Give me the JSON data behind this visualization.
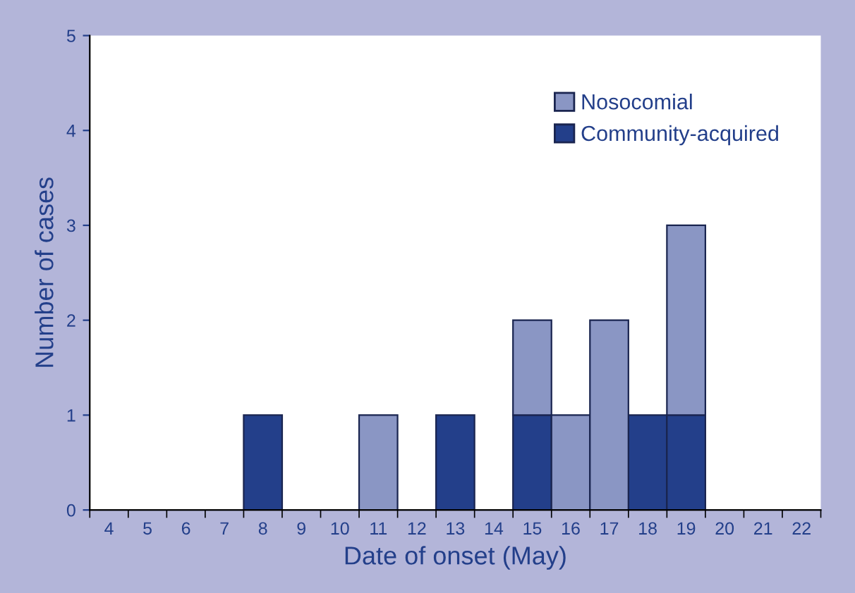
{
  "chart_data": {
    "type": "bar",
    "stacked": true,
    "xlabel": "Date of onset (May)",
    "ylabel": "Number of cases",
    "categories": [
      "4",
      "5",
      "6",
      "7",
      "8",
      "9",
      "10",
      "11",
      "12",
      "13",
      "14",
      "15",
      "16",
      "17",
      "18",
      "19",
      "20",
      "21",
      "22"
    ],
    "series": [
      {
        "name": "Community-acquired",
        "color": "#233f8a",
        "values": [
          null,
          null,
          null,
          null,
          1,
          null,
          null,
          null,
          null,
          1,
          null,
          1,
          null,
          null,
          1,
          1,
          null,
          null,
          null
        ]
      },
      {
        "name": "Nosocomial",
        "color": "#8a96c4",
        "values": [
          null,
          null,
          null,
          null,
          null,
          null,
          null,
          1,
          null,
          null,
          null,
          1,
          1,
          2,
          null,
          2,
          null,
          null,
          null
        ]
      }
    ],
    "ylim": [
      0,
      5
    ],
    "yticks": [
      0,
      1,
      2,
      3,
      4,
      5
    ],
    "grid": false,
    "legend": "top right"
  }
}
